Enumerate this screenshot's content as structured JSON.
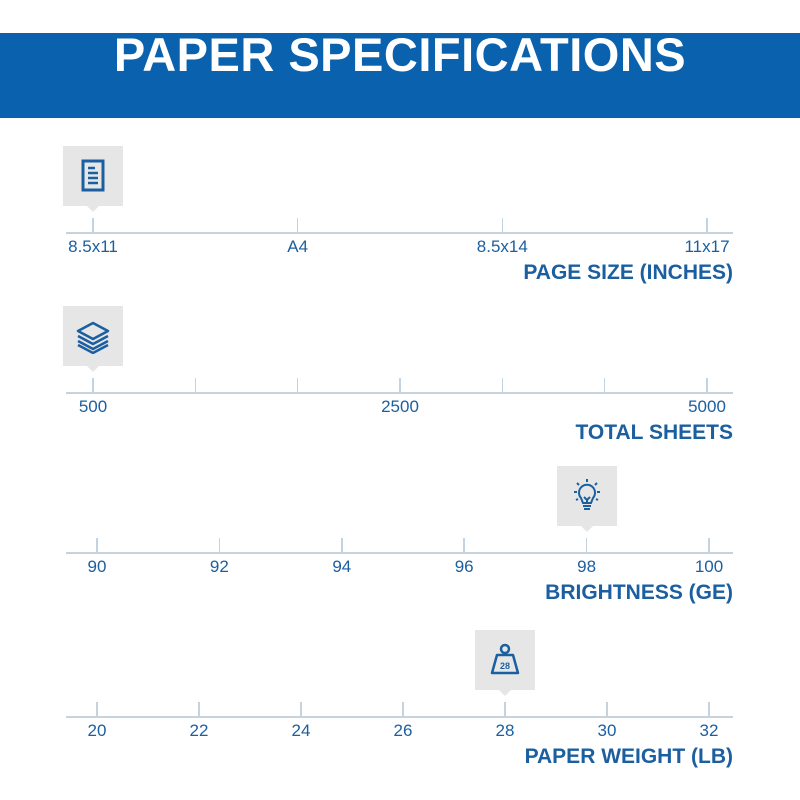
{
  "header": {
    "title": "PAPER SPECIFICATIONS"
  },
  "colors": {
    "brand_blue": "#0a62ae",
    "text_blue": "#1b5fa0",
    "marker_bg": "#e6e6e6"
  },
  "scales": [
    {
      "title": "PAGE SIZE (INCHES)",
      "ticks": [
        "8.5x11",
        "A4",
        "8.5x14",
        "11x17"
      ],
      "selected": "8.5x11",
      "icon": "document-icon"
    },
    {
      "title": "TOTAL SHEETS",
      "ticks": [
        "500",
        "",
        "",
        "2500",
        "",
        "",
        "5000"
      ],
      "selected": "500",
      "icon": "paper-stack-icon"
    },
    {
      "title": "BRIGHTNESS (GE)",
      "ticks": [
        "90",
        "92",
        "94",
        "96",
        "98",
        "100"
      ],
      "selected": "98",
      "icon": "lightbulb-icon"
    },
    {
      "title": "PAPER WEIGHT (LB)",
      "ticks": [
        "20",
        "22",
        "24",
        "26",
        "28",
        "30",
        "32"
      ],
      "selected": "28",
      "icon": "weight-icon",
      "icon_text": "28"
    }
  ]
}
